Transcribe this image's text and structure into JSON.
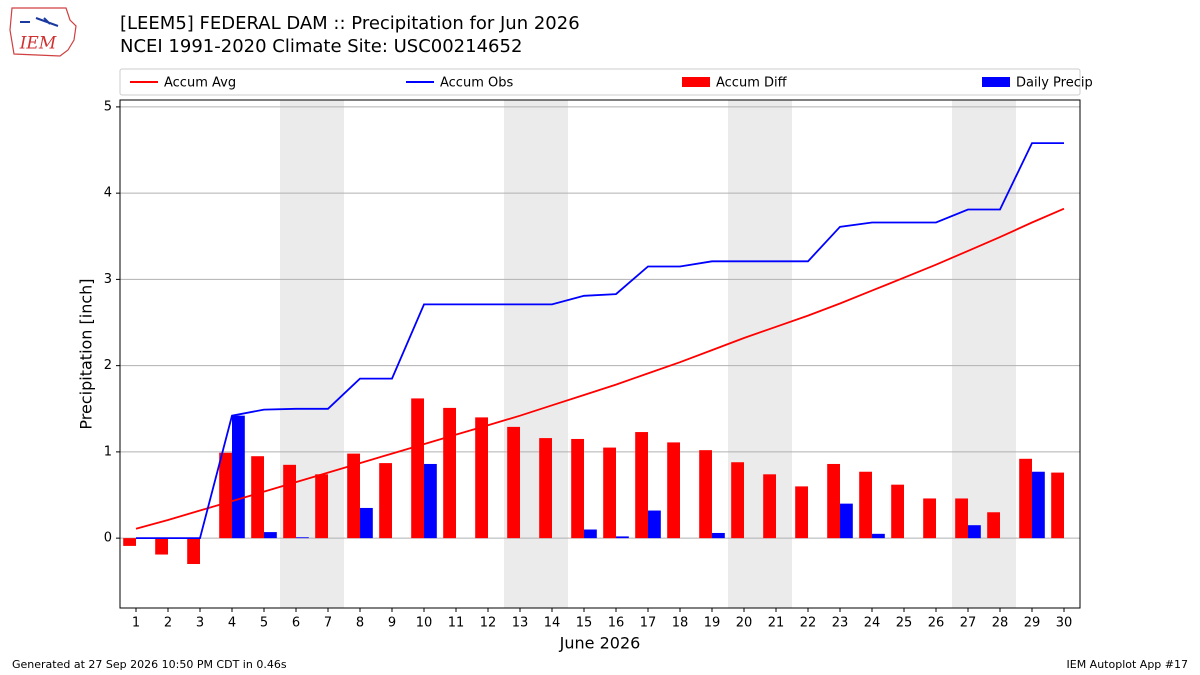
{
  "chart_data": {
    "type": "combo",
    "title": "[LEEM5] FEDERAL DAM :: Precipitation for Jun 2026",
    "subtitle": "NCEI 1991-2020 Climate Site: USC00214652",
    "xlabel": "June 2026",
    "ylabel": "Precipitation [inch]",
    "logo_text": "IEM",
    "footer_left": "Generated at 27 Sep 2026 10:50 PM CDT in 0.46s",
    "footer_right": "IEM Autoplot App #17",
    "x": [
      1,
      2,
      3,
      4,
      5,
      6,
      7,
      8,
      9,
      10,
      11,
      12,
      13,
      14,
      15,
      16,
      17,
      18,
      19,
      20,
      21,
      22,
      23,
      24,
      25,
      26,
      27,
      28,
      29,
      30
    ],
    "xlim": [
      0.5,
      30.5
    ],
    "xticks": [
      1,
      2,
      3,
      4,
      5,
      6,
      7,
      8,
      9,
      10,
      11,
      12,
      13,
      14,
      15,
      16,
      17,
      18,
      19,
      20,
      21,
      22,
      23,
      24,
      25,
      26,
      27,
      28,
      29,
      30
    ],
    "ylim": [
      -0.81,
      5.08
    ],
    "yticks": [
      0,
      1,
      2,
      3,
      4,
      5
    ],
    "grid": true,
    "shade_days": [
      6,
      7,
      13,
      14,
      20,
      21,
      27,
      28
    ],
    "series": [
      {
        "name": "Accum Avg",
        "type": "line",
        "color": "#ff0000",
        "values": [
          0.11,
          0.21,
          0.32,
          0.43,
          0.54,
          0.65,
          0.76,
          0.87,
          0.98,
          1.09,
          1.2,
          1.31,
          1.42,
          1.54,
          1.66,
          1.78,
          1.91,
          2.04,
          2.18,
          2.32,
          2.45,
          2.58,
          2.72,
          2.87,
          3.02,
          3.17,
          3.33,
          3.49,
          3.66,
          3.82
        ]
      },
      {
        "name": "Accum Obs",
        "type": "line",
        "color": "#0000ff",
        "values": [
          0,
          0,
          0,
          1.42,
          1.49,
          1.5,
          1.5,
          1.85,
          1.85,
          2.71,
          2.71,
          2.71,
          2.71,
          2.71,
          2.81,
          2.83,
          3.15,
          3.15,
          3.21,
          3.21,
          3.21,
          3.21,
          3.61,
          3.66,
          3.66,
          3.66,
          3.81,
          3.81,
          4.58,
          4.58
        ]
      },
      {
        "name": "Accum Diff",
        "type": "bar",
        "color": "#ff0000",
        "values": [
          -0.09,
          -0.19,
          -0.3,
          0.99,
          0.95,
          0.85,
          0.74,
          0.98,
          0.87,
          1.62,
          1.51,
          1.4,
          1.29,
          1.16,
          1.15,
          1.05,
          1.23,
          1.11,
          1.02,
          0.88,
          0.74,
          0.6,
          0.86,
          0.77,
          0.62,
          0.46,
          0.46,
          0.3,
          0.92,
          0.76
        ]
      },
      {
        "name": "Daily Precip",
        "type": "bar",
        "color": "#0000ff",
        "values": [
          0,
          0,
          0,
          1.42,
          0.07,
          0.01,
          0,
          0.35,
          0,
          0.86,
          0,
          0,
          0,
          0,
          0.1,
          0.02,
          0.32,
          0,
          0.06,
          0,
          0,
          0,
          0.4,
          0.05,
          0,
          0,
          0.15,
          0,
          0.77,
          0
        ]
      }
    ]
  }
}
